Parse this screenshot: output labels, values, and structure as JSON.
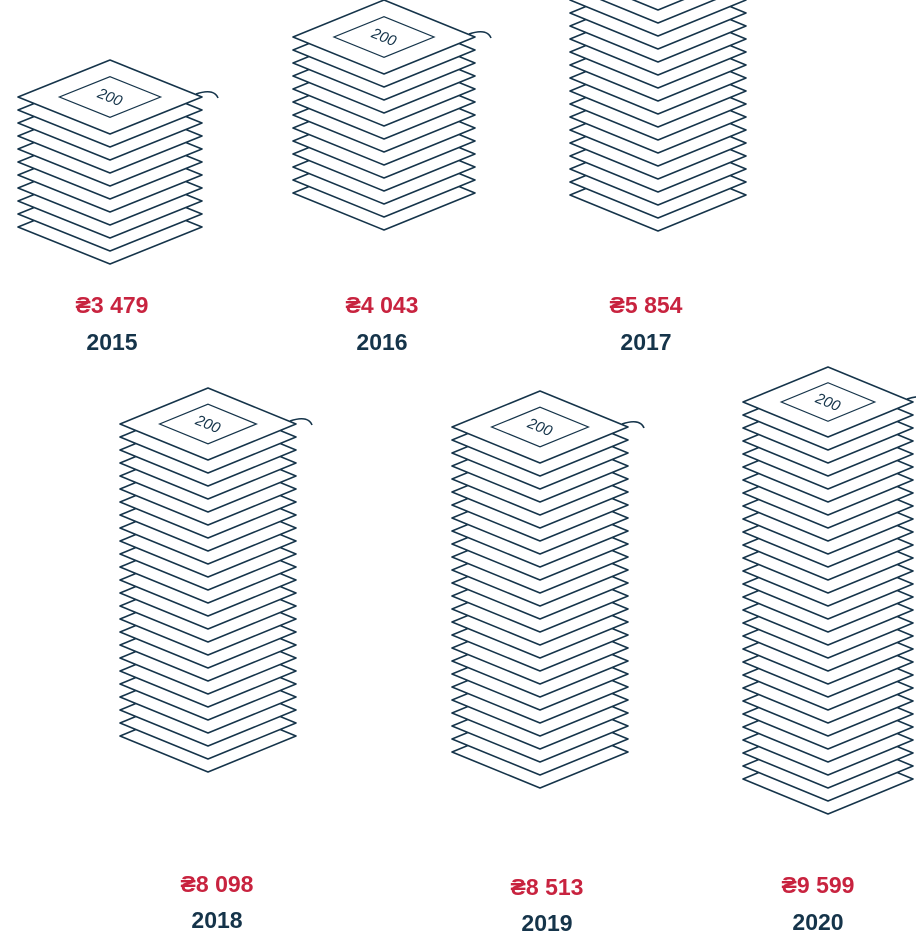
{
  "chart_data": {
    "type": "bar",
    "categories": [
      "2015",
      "2016",
      "2017",
      "2018",
      "2019",
      "2020"
    ],
    "values": [
      3479,
      4043,
      5854,
      8098,
      8513,
      9599
    ],
    "value_labels": [
      "₴3 479",
      "₴4 043",
      "₴5 854",
      "₴8 098",
      "₴8 513",
      "₴9 599"
    ],
    "banknote_denomination": "200",
    "title": "",
    "xlabel": "",
    "ylabel": ""
  },
  "colors": {
    "value": "#c8233f",
    "year": "#15344a",
    "outline": "#15344a",
    "background": "#ffffff"
  }
}
